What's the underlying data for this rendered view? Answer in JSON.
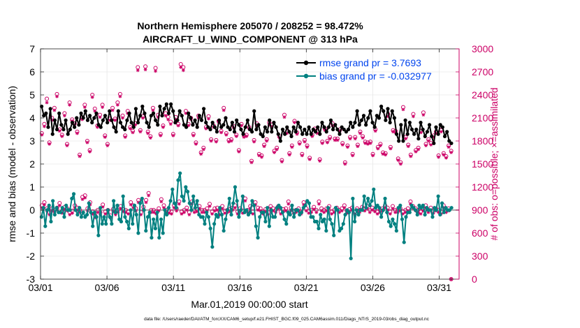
{
  "chart_data": {
    "type": "line",
    "title_line1": "Northern Hemisphere 205070 / 208252 = 98.472%",
    "title_line2": "AIRCRAFT_U_WIND_COMPONENT @ 313 hPa",
    "xlabel": "Mar.01,2019 00:00:00 start",
    "ylabel_left": "rmse and bias (model - observation)",
    "ylabel_right": "# of obs: o=possible; ×=assimilated",
    "footnote": "data file: /Users/raeder/DAI/ATM_forcXX/CAM6_setup/f.e21.FHIST_BGC.f09_025.CAM6assim.011/Diags_NTrS_2019-03/obs_diag_output.nc",
    "xlim": [
      0,
      31.5
    ],
    "ylim_left": [
      -3,
      7
    ],
    "ylim_right": [
      0,
      3000
    ],
    "x_ticks": [
      0,
      5,
      10,
      15,
      20,
      25,
      30
    ],
    "x_tick_labels": [
      "03/01",
      "03/06",
      "03/11",
      "03/16",
      "03/21",
      "03/26",
      "03/31"
    ],
    "y_left_ticks": [
      "-3",
      "-2",
      "-1",
      "0",
      "1",
      "2",
      "3",
      "4",
      "5",
      "6",
      "7"
    ],
    "y_right_ticks": [
      "0",
      "300",
      "600",
      "900",
      "1200",
      "1500",
      "1800",
      "2100",
      "2400",
      "2700",
      "3000"
    ],
    "legend": {
      "rmse_label": "rmse grand pr = 3.7693",
      "bias_label": "bias grand pr = -0.032977"
    },
    "zero_line": 0,
    "colors": {
      "rmse": "#000000",
      "bias": "#008080",
      "obs": "#cc0066",
      "legend_text": "#0044ee",
      "zero_line": "#aaaaaa",
      "grid": "#e0e0e0"
    },
    "series": [
      {
        "name": "rmse",
        "values": [
          4.5,
          4.1,
          4.2,
          3.6,
          4.4,
          3.3,
          3.9,
          3.5,
          4.2,
          3.7,
          3.5,
          3.9,
          3.3,
          3.5,
          3.8,
          3.6,
          4.0,
          3.7,
          4.2,
          4.0,
          4.3,
          3.9,
          4.1,
          3.8,
          4.0,
          4.2,
          3.7,
          3.6,
          3.9,
          4.1,
          3.8,
          4.3,
          3.9,
          3.6,
          3.4,
          4.3,
          3.8,
          3.6,
          3.5,
          3.9,
          4.2,
          3.8,
          3.6,
          4.4,
          3.8,
          4.1,
          4.5,
          4.2,
          3.8,
          3.6,
          4.1,
          4.2,
          3.9,
          3.7,
          4.5,
          4.1,
          4.4,
          4.6,
          4.2,
          4.6,
          4.3,
          3.8,
          3.9,
          4.3,
          4.1,
          3.7,
          3.6,
          4.2,
          4.0,
          3.7,
          3.9,
          3.6,
          4.1,
          3.9,
          4.4,
          3.8,
          3.6,
          3.5,
          3.8,
          3.6,
          3.4,
          3.9,
          3.6,
          3.7,
          4.0,
          3.6,
          3.5,
          3.8,
          3.4,
          3.9,
          3.7,
          3.5,
          3.3,
          3.6,
          3.9,
          3.5,
          3.4,
          4.3,
          3.5,
          3.7,
          3.3,
          3.2,
          3.6,
          3.4,
          3.9,
          3.4,
          3.8,
          3.6,
          3.3,
          3.0,
          3.5,
          3.3,
          3.6,
          3.4,
          3.2,
          3.6,
          3.4,
          3.8,
          3.6,
          3.3,
          3.5,
          3.3,
          3.6,
          3.3,
          3.5,
          3.4,
          3.6,
          3.3,
          3.8,
          3.6,
          3.4,
          3.6,
          3.9,
          3.5,
          3.7,
          3.5,
          3.3,
          3.6,
          3.5,
          3.4,
          3.5,
          3.8,
          3.6,
          3.8,
          4.3,
          3.7,
          3.9,
          4.1,
          3.7,
          4.0,
          4.3,
          3.8,
          3.6,
          4.1,
          4.0,
          4.5,
          4.3,
          3.9,
          4.4,
          3.8,
          4.3,
          4.0,
          3.3,
          3.0,
          3.7,
          3.0,
          3.9,
          3.3,
          3.8,
          3.5,
          3.3,
          3.5,
          3.1,
          3.8,
          3.5,
          3.2,
          3.4,
          3.7,
          3.2,
          2.9,
          3.6,
          3.3,
          3.7,
          3.6,
          3.2,
          3.4,
          3.0,
          2.9
        ]
      },
      {
        "name": "bias",
        "values": [
          -0.3,
          0.1,
          -0.7,
          0.0,
          0.2,
          -0.5,
          0.4,
          -0.2,
          0.1,
          -0.1,
          -0.1,
          0.1,
          -0.3,
          0.2,
          0.0,
          0.0,
          0.5,
          0.7,
          0.0,
          -0.2,
          0.1,
          -0.3,
          -0.1,
          -0.3,
          -0.2,
          0.3,
          -0.1,
          -0.7,
          -0.1,
          -0.3,
          -1.1,
          0.1,
          -0.6,
          -0.3,
          -0.6,
          0.0,
          -0.3,
          -0.6,
          0.4,
          -0.1,
          0.2,
          -0.4,
          -0.5,
          0.6,
          -0.3,
          -0.5,
          -0.8,
          0.0,
          -0.6,
          0.2,
          -0.2,
          -1.0,
          0.3,
          0.5,
          0.0,
          -0.9,
          -0.3,
          -0.1,
          -1.2,
          -0.4,
          -0.8,
          -0.1,
          -1.2,
          -0.4,
          -1.0,
          0.0,
          -0.2,
          0.1,
          0.4,
          0.9,
          0.3,
          0.1,
          1.3,
          1.6,
          0.6,
          0.4,
          1.0,
          0.8,
          0.3,
          0.0,
          0.6,
          0.1,
          0.4,
          -0.2,
          -0.3,
          -0.3,
          -0.6,
          -0.1,
          -0.3,
          -0.8,
          -1.6,
          -0.6,
          -0.2,
          -0.3,
          0.1,
          -0.2,
          -0.9,
          -0.4,
          0.0,
          0.5,
          -0.2,
          0.3,
          1.0,
          0.4,
          -0.3,
          0.0,
          0.6,
          -0.1,
          0.0,
          -0.2,
          -0.1,
          0.4,
          0.2,
          -0.7,
          -1.2,
          -0.3,
          -0.1,
          -0.1,
          -0.5,
          0.1,
          -0.7,
          0.0,
          -0.3,
          -0.3,
          0.1,
          0.2,
          0.1,
          -0.1,
          -0.4,
          -0.6,
          -0.1,
          -0.2,
          0.2,
          -0.3,
          0.0,
          0.0,
          -0.2,
          -0.1,
          0.1,
          0.2,
          0.4,
          0.3,
          -0.3,
          -0.3,
          -0.5,
          -0.5,
          -0.8,
          -0.2,
          -0.5,
          -0.4,
          -0.9,
          0.1,
          -0.4,
          -0.6,
          -1.1,
          0.1,
          0.0,
          -0.9,
          -0.8,
          -0.6,
          -0.2,
          0.0,
          -0.1,
          -2.1,
          0.5,
          -0.5,
          0.0,
          -0.2,
          0.0,
          0.0,
          0.6,
          0.1,
          0.5,
          0.2,
          0.4,
          0.9,
          0.1,
          0.2,
          0.1,
          -0.3,
          0.0,
          0.5,
          -0.1,
          -0.5,
          -0.7,
          -0.4,
          -0.6,
          -0.9,
          0.1,
          0.2,
          -0.4,
          -1.4,
          -0.3,
          -0.1,
          -0.1,
          0.2,
          0.1,
          0.0,
          -0.2,
          0.2,
          0.1,
          0.2,
          -0.2,
          0.1,
          0.0,
          0.0,
          -0.3,
          0.1,
          0.0,
          0.6,
          -0.2,
          0.3,
          -0.1,
          0.1,
          0.0,
          0.0,
          0.1
        ]
      },
      {
        "name": "obs_possible",
        "values": [
          1900,
          2020,
          2350,
          1780,
          2100,
          2230,
          2410,
          1950,
          1880,
          2160,
          1760,
          2300,
          2080,
          2030,
          1920,
          1620,
          2100,
          2270,
          1800,
          1680,
          2400,
          2220,
          2000,
          2140,
          2270,
          1870,
          1760,
          2090,
          2230,
          2090,
          2300,
          2410,
          2130,
          1870,
          2190,
          1980,
          1930,
          2030,
          2760,
          1940,
          2120,
          2770,
          1920,
          1860,
          2230,
          2750,
          2140,
          1890,
          2000,
          2160,
          2110,
          2050,
          1890,
          2110,
          2020,
          2800,
          2760,
          2190,
          2020,
          2100,
          1890,
          1780,
          2130,
          1650,
          1710,
          1980,
          2120,
          1820,
          2000,
          1810,
          2060,
          1930,
          2230,
          1900,
          1810,
          1820,
          1990,
          1880,
          1680,
          2020,
          1870,
          1880,
          1980,
          1540,
          1810,
          2030,
          1630,
          1610,
          1750,
          1820,
          2040,
          2010,
          1670,
          1710,
          1860,
          1550,
          2140,
          1920,
          1640,
          1740,
          2060,
          1910,
          1780,
          1630,
          1810,
          1740,
          1580,
          1880,
          1960,
          1920,
          1560,
          1790,
          1960,
          1800,
          1850,
          2030,
          1830,
          1830,
          1950,
          1770,
          1520,
          1740,
          1850,
          1630,
          1850,
          1750,
          1920,
          1860,
          1790,
          1780,
          1790,
          1630,
          1950,
          1720,
          1760,
          1650,
          1640,
          2150,
          1720,
          1940,
          1930,
          1570,
          1520,
          2240,
          1850,
          1750,
          1620,
          2150,
          1680,
          1710,
          1930,
          2170,
          1760,
          1820,
          1770,
          1870,
          1920,
          1610,
          1940,
          1640,
          1600,
          1740,
          1670
        ]
      },
      {
        "name": "obs_assimilated",
        "values": [
          1880,
          1990,
          2300,
          1760,
          2070,
          2200,
          2380,
          1930,
          1860,
          2130,
          1740,
          2270,
          2060,
          2010,
          1900,
          1600,
          2080,
          2240,
          1780,
          1660,
          2370,
          2190,
          1980,
          2110,
          2240,
          1850,
          1740,
          2070,
          2200,
          2070,
          2270,
          2380,
          2100,
          1850,
          2160,
          1960,
          1910,
          2010,
          2720,
          1920,
          2100,
          2730,
          1900,
          1840,
          2200,
          2710,
          2110,
          1870,
          1980,
          2130,
          2080,
          2020,
          1870,
          2080,
          2000,
          2760,
          2720,
          2160,
          2000,
          2080,
          1870,
          1760,
          2100,
          1630,
          1690,
          1960,
          2090,
          1800,
          1980,
          1790,
          2040,
          1910,
          2200,
          1880,
          1790,
          1800,
          1970,
          1860,
          1660,
          2000,
          1850,
          1860,
          1960,
          1520,
          1790,
          2000,
          1610,
          1590,
          1730,
          1800,
          2010,
          1990,
          1650,
          1690,
          1840,
          1530,
          2110,
          1900,
          1620,
          1720,
          2040,
          1890,
          1760,
          1610,
          1790,
          1720,
          1560,
          1860,
          1940,
          1900,
          1540,
          1770,
          1940,
          1780,
          1830,
          2000,
          1810,
          1810,
          1930,
          1750,
          1500,
          1720,
          1830,
          1610,
          1830,
          1730,
          1900,
          1840,
          1770,
          1760,
          1770,
          1610,
          1930,
          1700,
          1740,
          1630,
          1620,
          2120,
          1700,
          1920,
          1910,
          1550,
          1500,
          2210,
          1830,
          1730,
          1600,
          2120,
          1660,
          1690,
          1910,
          2140,
          1740,
          1800,
          1750,
          1850,
          1900,
          1590,
          1920,
          1620,
          1580,
          1720,
          1650
        ]
      },
      {
        "name": "obs_low_possible",
        "values": [
          960,
          1000,
          920,
          870,
          920,
          900,
          930,
          990,
          890,
          940,
          920,
          870,
          890,
          960,
          930,
          900,
          1070,
          1090,
          920,
          1000,
          880,
          830,
          900,
          870,
          970,
          880,
          900,
          830,
          910,
          870,
          900,
          950,
          910,
          900,
          880,
          1000,
          960,
          920,
          1030,
          870,
          940,
          1030,
          1120,
          900,
          900,
          880,
          920,
          1040,
          960,
          900,
          890,
          880,
          960,
          920,
          1010,
          880,
          900,
          930,
          870,
          1010,
          900,
          910,
          950,
          900,
          900,
          920,
          980,
          880,
          920,
          930,
          870,
          950,
          890,
          900,
          910,
          930,
          960,
          880,
          920,
          890,
          1050,
          900,
          950,
          880,
          1000,
          930,
          920,
          880,
          910,
          870,
          950,
          920,
          900,
          950,
          880,
          910,
          920,
          1010,
          930,
          890,
          900,
          920,
          880,
          1000,
          920,
          890,
          900,
          940,
          900,
          1010,
          920,
          900,
          920,
          950,
          880,
          900,
          930,
          900,
          920,
          960,
          890,
          910,
          930,
          880,
          920,
          900,
          940,
          920,
          950,
          900,
          930,
          910,
          880,
          900,
          920,
          960,
          930,
          880,
          950,
          900,
          900,
          920,
          880,
          900,
          920,
          1010,
          950,
          920,
          900,
          880,
          920,
          960,
          900,
          930,
          890,
          920,
          900,
          880,
          960,
          900,
          920,
          0
        ]
      },
      {
        "name": "obs_low_assimilated",
        "values": [
          930,
          970,
          890,
          840,
          890,
          870,
          900,
          960,
          860,
          910,
          890,
          840,
          860,
          930,
          900,
          870,
          1040,
          1060,
          890,
          970,
          850,
          800,
          870,
          840,
          940,
          850,
          870,
          800,
          880,
          840,
          870,
          920,
          880,
          870,
          850,
          970,
          930,
          890,
          1000,
          840,
          910,
          1000,
          1090,
          870,
          870,
          850,
          890,
          1010,
          930,
          870,
          860,
          850,
          930,
          890,
          980,
          850,
          870,
          900,
          840,
          980,
          870,
          880,
          920,
          870,
          870,
          890,
          950,
          850,
          890,
          900,
          840,
          920,
          860,
          870,
          880,
          900,
          930,
          850,
          890,
          860,
          1020,
          870,
          920,
          850,
          970,
          900,
          890,
          850,
          880,
          840,
          920,
          890,
          870,
          920,
          850,
          880,
          890,
          980,
          900,
          860,
          870,
          890,
          850,
          970,
          890,
          860,
          870,
          910,
          870,
          980,
          890,
          870,
          890,
          920,
          850,
          870,
          900,
          870,
          890,
          930,
          860,
          880,
          900,
          850,
          890,
          870,
          910,
          890,
          920,
          870,
          900,
          880,
          850,
          870,
          890,
          930,
          900,
          850,
          920,
          870,
          870,
          890,
          850,
          870,
          890,
          980,
          920,
          890,
          870,
          850,
          890,
          930,
          870,
          900,
          860,
          890,
          870,
          850,
          930,
          870,
          890,
          0
        ]
      }
    ]
  }
}
